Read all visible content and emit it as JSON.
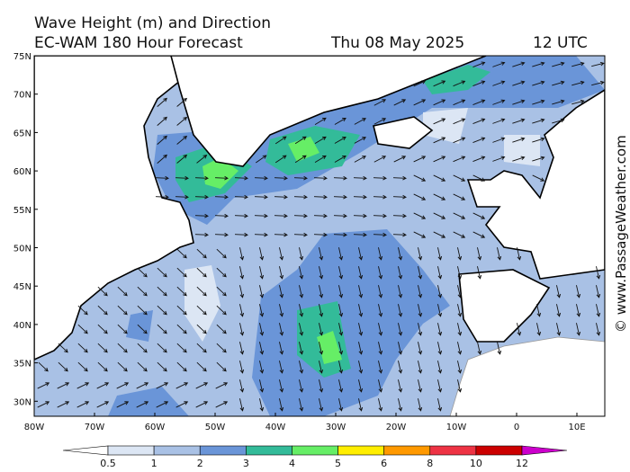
{
  "header": {
    "title": "Wave Height (m) and Direction",
    "model": "EC-WAM 180 Hour Forecast",
    "date": "Thu 08 May 2025",
    "time": "12 UTC"
  },
  "map": {
    "lat_labels": [
      "75N",
      "70N",
      "65N",
      "60N",
      "55N",
      "50N",
      "45N",
      "40N",
      "35N",
      "30N"
    ],
    "lon_labels": [
      "80W",
      "70W",
      "60W",
      "50W",
      "40W",
      "30W",
      "20W",
      "10W",
      "0",
      "10E"
    ]
  },
  "legend": {
    "levels": [
      0.5,
      1,
      2,
      3,
      4,
      5,
      6,
      8,
      10,
      12
    ],
    "colors": [
      "#ffffff",
      "#dce6f4",
      "#a9c1e5",
      "#6a95d8",
      "#33bb99",
      "#66ee66",
      "#ffee00",
      "#ff9900",
      "#ee3344",
      "#cc0000",
      "#cc00cc"
    ]
  },
  "watermark": "© www.PassageWeather.com"
}
